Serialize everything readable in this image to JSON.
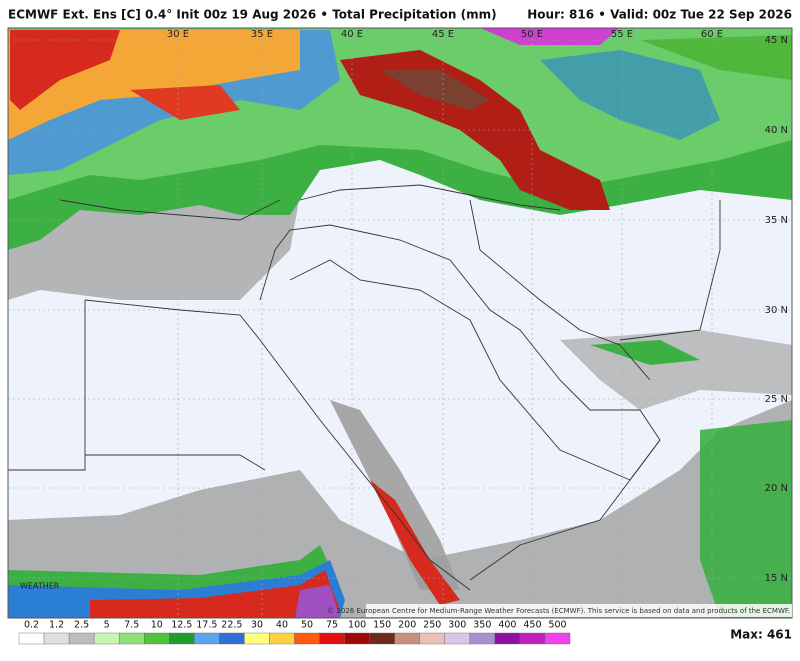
{
  "header": {
    "left": "ECMWF Ext. Ens [C] 0.4° Init 00z 19 Aug 2026 • Total Precipitation (mm)",
    "right": "Hour: 816 • Valid: 00z Tue 22 Sep 2026"
  },
  "map": {
    "lat_labels": [
      "45 N",
      "40 N",
      "35 N",
      "30 N",
      "25 N",
      "20 N",
      "15 N"
    ],
    "lon_labels": [
      "30 E",
      "35 E",
      "40 E",
      "45 E",
      "50 E",
      "55 E",
      "60 E"
    ],
    "credit": "© 2026 European Centre for Medium-Range Weather Forecasts (ECMWF). This service is based on data and products of the ECMWF."
  },
  "legend": {
    "labels": [
      "0.2",
      "1.2",
      "2.5",
      "5",
      "7.5",
      "10",
      "12.5",
      "17.5",
      "22.5",
      "30",
      "40",
      "50",
      "75",
      "100",
      "150",
      "200",
      "250",
      "300",
      "350",
      "400",
      "450",
      "500"
    ],
    "max": "Max: 461"
  }
}
